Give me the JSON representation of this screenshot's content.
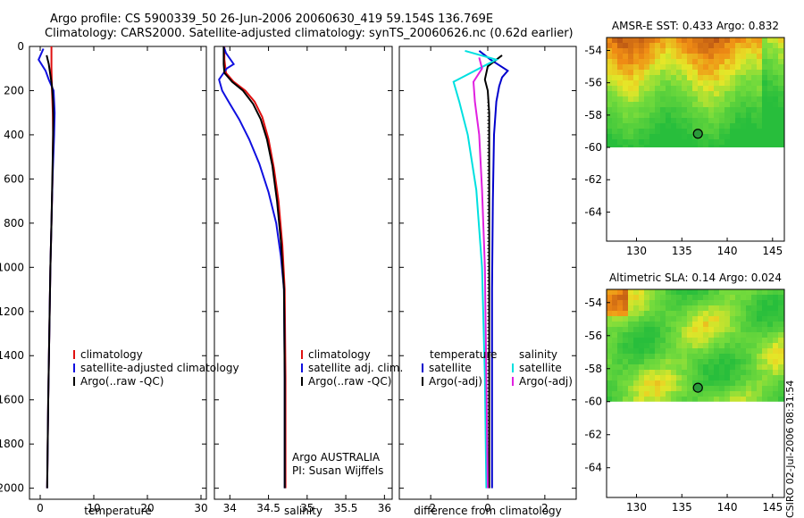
{
  "header": {
    "line1": "Argo profile: CS 5900339_50 26-Jun-2006 20060630_419 59.154S 136.769E",
    "line2": "Climatology: CARS2000. Satellite-adjusted climatology: synTS_20060626.nc (0.62d earlier)"
  },
  "stamp": "CSIRO 02-Jul-2006 08:31:54",
  "chart_data": [
    {
      "type": "line",
      "id": "temperature",
      "xlabel": "temperature",
      "ylabel": "",
      "xlim": [
        -2,
        31
      ],
      "ylim": [
        2050,
        0
      ],
      "xticks": [
        0,
        10,
        20,
        30
      ],
      "yticks": [
        0,
        200,
        400,
        600,
        800,
        1000,
        1200,
        1400,
        1600,
        1800,
        2000
      ],
      "legend": [
        "climatology",
        "satellite-adjusted climatology",
        "Argo(..raw -QC)"
      ],
      "series": [
        {
          "name": "climatology",
          "color": "#e01010",
          "points": [
            [
              2.1,
              0
            ],
            [
              2.1,
              100
            ],
            [
              2.2,
              200
            ],
            [
              2.35,
              300
            ],
            [
              2.4,
              400
            ],
            [
              2.3,
              600
            ],
            [
              2.1,
              800
            ],
            [
              1.9,
              1000
            ],
            [
              1.7,
              1300
            ],
            [
              1.5,
              1600
            ],
            [
              1.3,
              2000
            ]
          ]
        },
        {
          "name": "satellite-adjusted climatology",
          "color": "#1010e0",
          "points": [
            [
              0.6,
              10
            ],
            [
              -0.3,
              60
            ],
            [
              1.0,
              110
            ],
            [
              1.6,
              150
            ],
            [
              2.5,
              200
            ],
            [
              2.7,
              300
            ],
            [
              2.6,
              400
            ],
            [
              2.3,
              600
            ],
            [
              2.1,
              800
            ],
            [
              1.9,
              1000
            ],
            [
              1.7,
              1300
            ],
            [
              1.5,
              1600
            ],
            [
              1.3,
              2000
            ]
          ]
        },
        {
          "name": "Argo(..raw -QC)",
          "color": "#000000",
          "points": [
            [
              1.2,
              40
            ],
            [
              1.6,
              80
            ],
            [
              1.9,
              130
            ],
            [
              2.2,
              180
            ],
            [
              2.4,
              250
            ],
            [
              2.45,
              320
            ],
            [
              2.4,
              420
            ],
            [
              2.3,
              550
            ],
            [
              2.1,
              800
            ],
            [
              1.9,
              1000
            ],
            [
              1.7,
              1300
            ],
            [
              1.5,
              1600
            ],
            [
              1.3,
              2000
            ]
          ]
        }
      ]
    },
    {
      "type": "line",
      "id": "salinity",
      "xlabel": "salinity",
      "xlim": [
        33.8,
        36.1
      ],
      "ylim": [
        2050,
        0
      ],
      "xticks": [
        34,
        34.5,
        35,
        35.5,
        36
      ],
      "legend": [
        "climatology",
        "satellite adj. clim.",
        "Argo(..raw -QC)"
      ],
      "annotations": [
        "Argo AUSTRALIA",
        "PI: Susan Wijffels"
      ],
      "series": [
        {
          "name": "climatology",
          "color": "#e01010",
          "points": [
            [
              33.93,
              0
            ],
            [
              33.93,
              60
            ],
            [
              33.95,
              120
            ],
            [
              34.05,
              160
            ],
            [
              34.2,
              200
            ],
            [
              34.32,
              250
            ],
            [
              34.42,
              320
            ],
            [
              34.5,
              420
            ],
            [
              34.57,
              550
            ],
            [
              34.63,
              700
            ],
            [
              34.68,
              900
            ],
            [
              34.71,
              1100
            ],
            [
              34.72,
              1500
            ],
            [
              34.72,
              2000
            ]
          ]
        },
        {
          "name": "satellite adj. clim.",
          "color": "#1010e0",
          "points": [
            [
              33.92,
              0
            ],
            [
              33.95,
              30
            ],
            [
              34.05,
              80
            ],
            [
              33.96,
              100
            ],
            [
              33.86,
              150
            ],
            [
              33.9,
              200
            ],
            [
              34.0,
              260
            ],
            [
              34.12,
              330
            ],
            [
              34.25,
              420
            ],
            [
              34.38,
              530
            ],
            [
              34.5,
              660
            ],
            [
              34.6,
              800
            ],
            [
              34.66,
              950
            ],
            [
              34.7,
              1100
            ],
            [
              34.71,
              1500
            ],
            [
              34.71,
              2000
            ]
          ]
        },
        {
          "name": "Argo(..raw -QC)",
          "color": "#000000",
          "points": [
            [
              33.92,
              0
            ],
            [
              33.92,
              80
            ],
            [
              33.93,
              120
            ],
            [
              34.03,
              160
            ],
            [
              34.17,
              200
            ],
            [
              34.3,
              260
            ],
            [
              34.4,
              330
            ],
            [
              34.48,
              420
            ],
            [
              34.55,
              540
            ],
            [
              34.61,
              700
            ],
            [
              34.66,
              880
            ],
            [
              34.7,
              1100
            ],
            [
              34.71,
              1500
            ],
            [
              34.71,
              2000
            ]
          ]
        }
      ]
    },
    {
      "type": "line",
      "id": "difference",
      "xlabel": "difference from climatology",
      "xlim": [
        -3.1,
        3.1
      ],
      "ylim": [
        2050,
        0
      ],
      "xticks": [
        -2,
        0,
        2
      ],
      "legend_headers": [
        "temperature",
        "salinity"
      ],
      "legend": [
        "satellite",
        "Argo(-adj)",
        "satellite",
        "Argo(-adj)"
      ],
      "series": [
        {
          "name": "temperature satellite",
          "color": "#0000cc",
          "points": [
            [
              -0.3,
              20
            ],
            [
              0.1,
              60
            ],
            [
              0.7,
              110
            ],
            [
              0.5,
              140
            ],
            [
              0.4,
              180
            ],
            [
              0.3,
              250
            ],
            [
              0.22,
              400
            ],
            [
              0.18,
              700
            ],
            [
              0.15,
              1100
            ],
            [
              0.15,
              1500
            ],
            [
              0.15,
              2000
            ]
          ]
        },
        {
          "name": "temperature Argo(-adj)",
          "color": "#000000",
          "points": [
            [
              0.5,
              40
            ],
            [
              0.0,
              90
            ],
            [
              -0.1,
              150
            ],
            [
              0.0,
              200
            ],
            [
              0.05,
              300
            ],
            [
              0.05,
              600
            ],
            [
              0.05,
              1200
            ],
            [
              0.05,
              2000
            ]
          ]
        },
        {
          "name": "salinity satellite",
          "color": "#00e0e0",
          "points": [
            [
              -0.8,
              20
            ],
            [
              0.3,
              60
            ],
            [
              -0.3,
              100
            ],
            [
              -1.2,
              160
            ],
            [
              -1.0,
              250
            ],
            [
              -0.7,
              400
            ],
            [
              -0.4,
              650
            ],
            [
              -0.2,
              1000
            ],
            [
              -0.1,
              1500
            ],
            [
              -0.05,
              2000
            ]
          ]
        },
        {
          "name": "salinity Argo(-adj)",
          "color": "#e020e0",
          "points": [
            [
              -0.3,
              50
            ],
            [
              -0.2,
              100
            ],
            [
              -0.5,
              160
            ],
            [
              -0.45,
              250
            ],
            [
              -0.3,
              400
            ],
            [
              -0.2,
              650
            ],
            [
              -0.1,
              1000
            ],
            [
              -0.05,
              1500
            ],
            [
              0.0,
              2000
            ]
          ]
        }
      ]
    },
    {
      "type": "heatmap",
      "id": "sst-map",
      "title": "AMSR-E SST: 0.433 Argo: 0.832",
      "xlim": [
        126.7,
        146.3
      ],
      "ylim": [
        -65.8,
        -53.2
      ],
      "xticks": [
        130,
        135,
        140,
        145
      ],
      "yticks": [
        -54,
        -56,
        -58,
        -60,
        -62,
        -64
      ],
      "data_extent": [
        -60,
        -53.2
      ],
      "argo_position": [
        136.769,
        -59.154
      ]
    },
    {
      "type": "heatmap",
      "id": "sla-map",
      "title": "Altimetric SLA: 0.14 Argo: 0.024",
      "xlim": [
        126.7,
        146.3
      ],
      "ylim": [
        -65.8,
        -53.2
      ],
      "xticks": [
        130,
        135,
        140,
        145
      ],
      "yticks": [
        -54,
        -56,
        -58,
        -60,
        -62,
        -64
      ],
      "data_extent": [
        -60,
        -53.2
      ],
      "argo_position": [
        136.769,
        -59.154
      ]
    }
  ]
}
